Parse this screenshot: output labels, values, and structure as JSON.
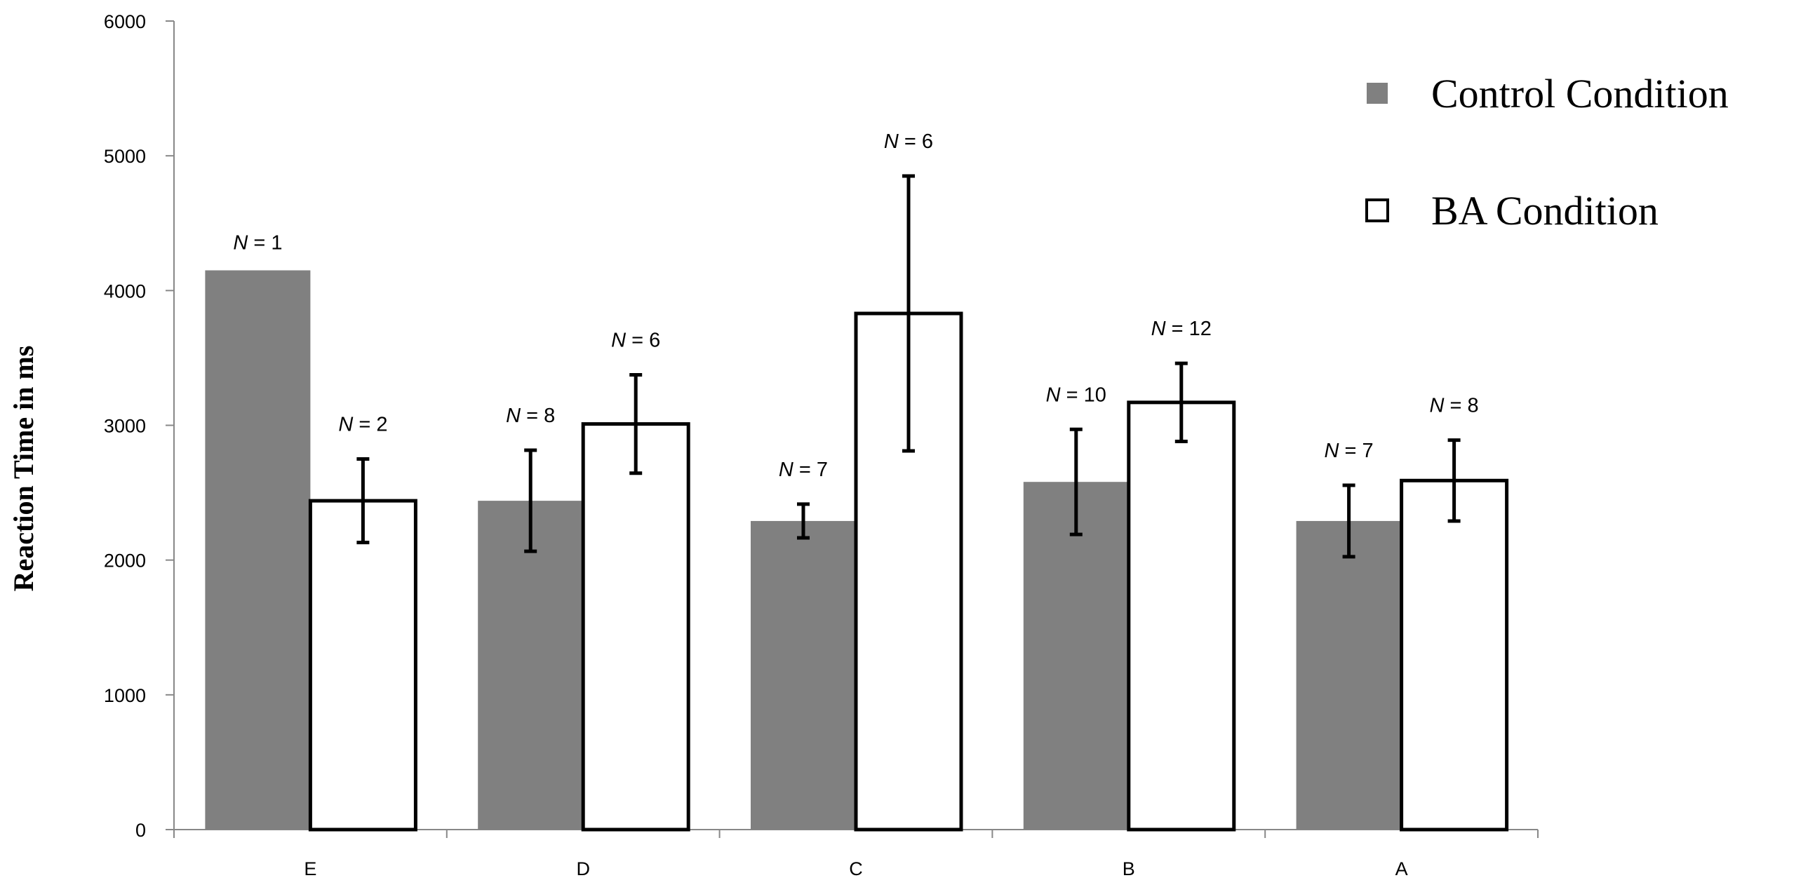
{
  "chart_data": {
    "type": "bar",
    "title": "",
    "xlabel": "",
    "ylabel": "Reaction Time  in ms",
    "ylim": [
      0,
      6000
    ],
    "yticks": [
      0,
      1000,
      2000,
      3000,
      4000,
      5000,
      6000
    ],
    "categories": [
      "E",
      "D",
      "C",
      "B",
      "A"
    ],
    "series": [
      {
        "name": "Control Condition",
        "color": "#808080",
        "values": [
          4150,
          2440,
          2290,
          2580,
          2290
        ],
        "error": [
          null,
          375,
          125,
          390,
          265
        ],
        "n_labels": [
          "N = 1",
          "N = 8",
          "N = 7",
          "N = 10",
          "N  = 7"
        ]
      },
      {
        "name": "BA Condition",
        "color": "#ffffff",
        "values": [
          2440,
          3010,
          3830,
          3170,
          2590
        ],
        "error": [
          310,
          365,
          1020,
          290,
          300
        ],
        "n_labels": [
          "N = 2",
          "N  = 6",
          "N = 6",
          "N = 12",
          "N = 8"
        ]
      }
    ],
    "legend": {
      "position": "top-right"
    },
    "grid": false
  }
}
